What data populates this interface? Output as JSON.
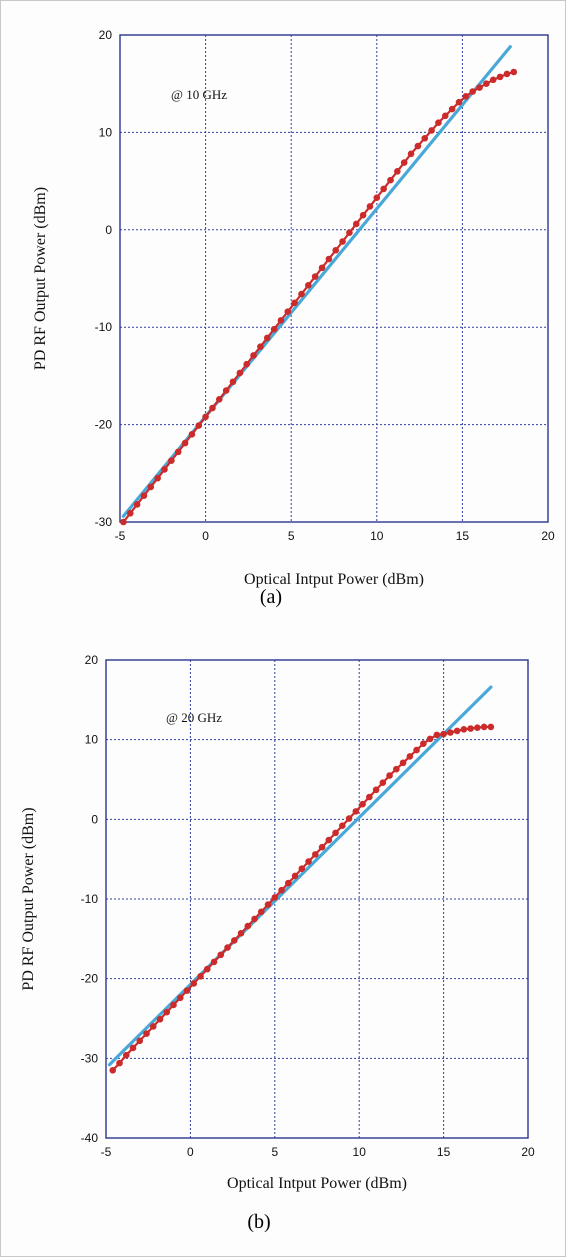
{
  "chart_data": [
    {
      "type": "line",
      "panel_label": "(a)",
      "annotation": "@ 10 GHz",
      "xlabel": "Optical Intput Power (dBm)",
      "ylabel": "PD RF Output Power (dBm)",
      "xlim": [
        -5,
        20
      ],
      "ylim": [
        -30,
        20
      ],
      "xticks": [
        -5,
        0,
        5,
        10,
        15,
        20
      ],
      "yticks": [
        -30,
        -20,
        -10,
        0,
        10,
        20
      ],
      "grid": true,
      "series": [
        {
          "color": "#cc2b2b",
          "marker": "circle",
          "x": [
            -4.8,
            -4.4,
            -4.0,
            -3.6,
            -3.2,
            -2.8,
            -2.4,
            -2.0,
            -1.6,
            -1.2,
            -0.8,
            -0.4,
            0.0,
            0.4,
            0.8,
            1.2,
            1.6,
            2.0,
            2.4,
            2.8,
            3.2,
            3.6,
            4.0,
            4.4,
            4.8,
            5.2,
            5.6,
            6.0,
            6.4,
            6.8,
            7.2,
            7.6,
            8.0,
            8.4,
            8.8,
            9.2,
            9.6,
            10.0,
            10.4,
            10.8,
            11.2,
            11.6,
            12.0,
            12.4,
            12.8,
            13.2,
            13.6,
            14.0,
            14.4,
            14.8,
            15.2,
            15.6,
            16.0,
            16.4,
            16.8,
            17.2,
            17.6,
            18.0
          ],
          "y": [
            -30.0,
            -29.1,
            -28.2,
            -27.3,
            -26.4,
            -25.5,
            -24.6,
            -23.7,
            -22.8,
            -21.9,
            -21.0,
            -20.1,
            -19.2,
            -18.3,
            -17.4,
            -16.5,
            -15.6,
            -14.7,
            -13.8,
            -12.9,
            -12.0,
            -11.1,
            -10.2,
            -9.3,
            -8.4,
            -7.5,
            -6.6,
            -5.7,
            -4.8,
            -3.9,
            -3.0,
            -2.1,
            -1.2,
            -0.3,
            0.6,
            1.5,
            2.4,
            3.3,
            4.2,
            5.1,
            6.0,
            6.9,
            7.8,
            8.6,
            9.4,
            10.2,
            11.0,
            11.7,
            12.4,
            13.1,
            13.7,
            14.2,
            14.6,
            15.0,
            15.4,
            15.7,
            16.0,
            16.2
          ]
        },
        {
          "color": "#4aa8d8",
          "marker": "none",
          "x": [
            -4.8,
            17.8
          ],
          "y": [
            -29.4,
            18.8
          ]
        }
      ]
    },
    {
      "type": "line",
      "panel_label": "(b)",
      "annotation": "@ 20 GHz",
      "xlabel": "Optical Intput Power (dBm)",
      "ylabel": "PD RF Output Power (dBm)",
      "xlim": [
        -5,
        20
      ],
      "ylim": [
        -40,
        20
      ],
      "xticks": [
        -5,
        0,
        5,
        10,
        15,
        20
      ],
      "yticks": [
        -40,
        -30,
        -20,
        -10,
        0,
        10,
        20
      ],
      "grid": true,
      "series": [
        {
          "color": "#cc2b2b",
          "marker": "circle",
          "x": [
            -4.6,
            -4.2,
            -3.8,
            -3.4,
            -3.0,
            -2.6,
            -2.2,
            -1.8,
            -1.4,
            -1.0,
            -0.6,
            -0.2,
            0.2,
            0.6,
            1.0,
            1.4,
            1.8,
            2.2,
            2.6,
            3.0,
            3.4,
            3.8,
            4.2,
            4.6,
            5.0,
            5.4,
            5.8,
            6.2,
            6.6,
            7.0,
            7.4,
            7.8,
            8.2,
            8.6,
            9.0,
            9.4,
            9.8,
            10.2,
            10.6,
            11.0,
            11.4,
            11.8,
            12.2,
            12.6,
            13.0,
            13.4,
            13.8,
            14.2,
            14.6,
            15.0,
            15.4,
            15.8,
            16.2,
            16.6,
            17.0,
            17.4,
            17.8
          ],
          "y": [
            -31.5,
            -30.6,
            -29.6,
            -28.7,
            -27.8,
            -26.9,
            -26.0,
            -25.1,
            -24.2,
            -23.3,
            -22.4,
            -21.5,
            -20.6,
            -19.7,
            -18.8,
            -17.9,
            -17.0,
            -16.1,
            -15.2,
            -14.3,
            -13.4,
            -12.5,
            -11.6,
            -10.7,
            -9.8,
            -8.9,
            -8.0,
            -7.1,
            -6.2,
            -5.3,
            -4.4,
            -3.5,
            -2.6,
            -1.7,
            -0.8,
            0.1,
            1.0,
            1.9,
            2.8,
            3.7,
            4.6,
            5.5,
            6.3,
            7.1,
            7.9,
            8.7,
            9.5,
            10.1,
            10.6,
            10.7,
            10.9,
            11.1,
            11.3,
            11.4,
            11.5,
            11.6,
            11.6
          ]
        },
        {
          "color": "#4aa8d8",
          "marker": "none",
          "x": [
            -4.8,
            17.8
          ],
          "y": [
            -30.8,
            16.6
          ]
        }
      ]
    }
  ]
}
